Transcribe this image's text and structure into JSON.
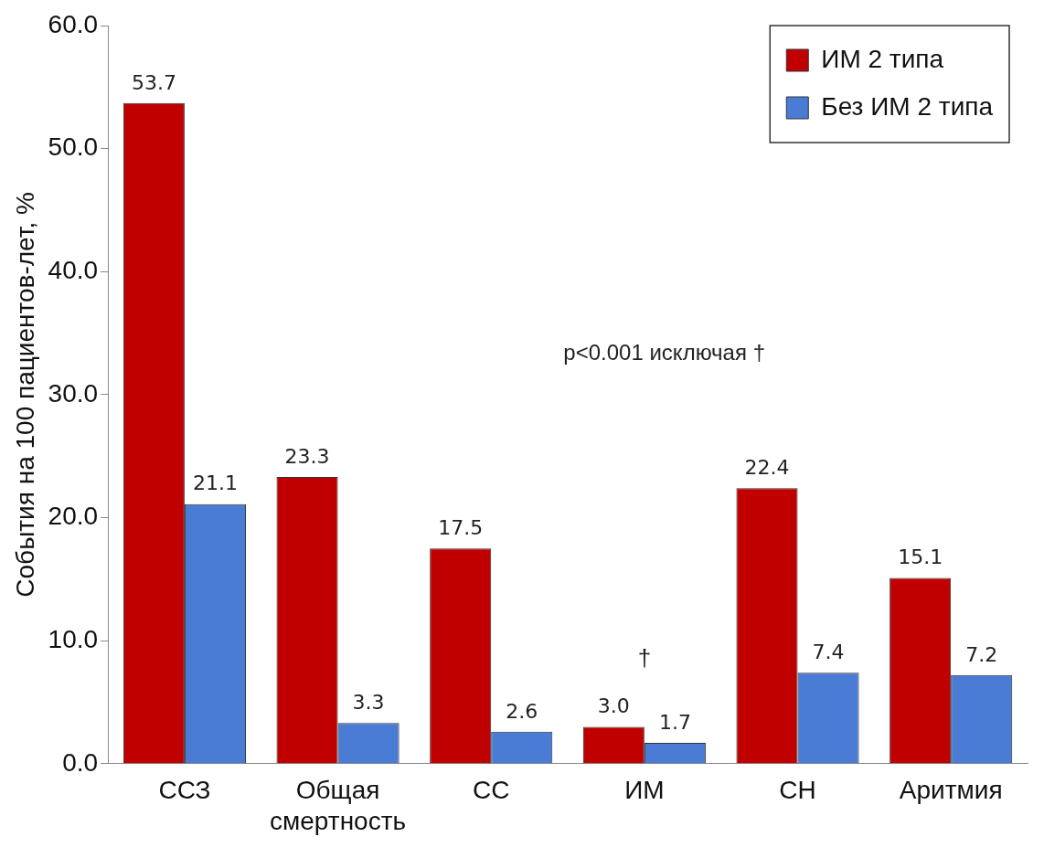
{
  "chart_data": {
    "type": "bar",
    "ylabel": "События на 100 пациентов-лет, %",
    "categories": [
      "ССЗ",
      "Общая смертность",
      "СС",
      "ИМ",
      "СН",
      "Аритмия"
    ],
    "series": [
      {
        "name": "ИМ 2 типа",
        "color": "#c00000",
        "values": [
          53.7,
          23.3,
          17.5,
          3.0,
          22.4,
          15.1
        ],
        "value_labels": [
          "53.7",
          "23.3",
          "17.5",
          "3.0",
          "22.4",
          "15.1"
        ]
      },
      {
        "name": "Без ИМ 2 типа",
        "color": "#4a7bd5",
        "values": [
          21.1,
          3.3,
          2.6,
          1.7,
          7.4,
          7.2
        ],
        "value_labels": [
          "21.1",
          "3.3",
          "2.6",
          "1.7",
          "7.4",
          "7.2"
        ]
      }
    ],
    "ylim": [
      0,
      60
    ],
    "yticks": [
      {
        "value": 0,
        "label": "0.0"
      },
      {
        "value": 10,
        "label": "10.0"
      },
      {
        "value": 20,
        "label": "20.0"
      },
      {
        "value": 30,
        "label": "30.0"
      },
      {
        "value": 40,
        "label": "40.0"
      },
      {
        "value": 50,
        "label": "50.0"
      },
      {
        "value": 60,
        "label": "60.0"
      }
    ],
    "annotations": [
      "p<0.001 исключая †",
      "†"
    ],
    "legend": "top right",
    "grid": false
  }
}
